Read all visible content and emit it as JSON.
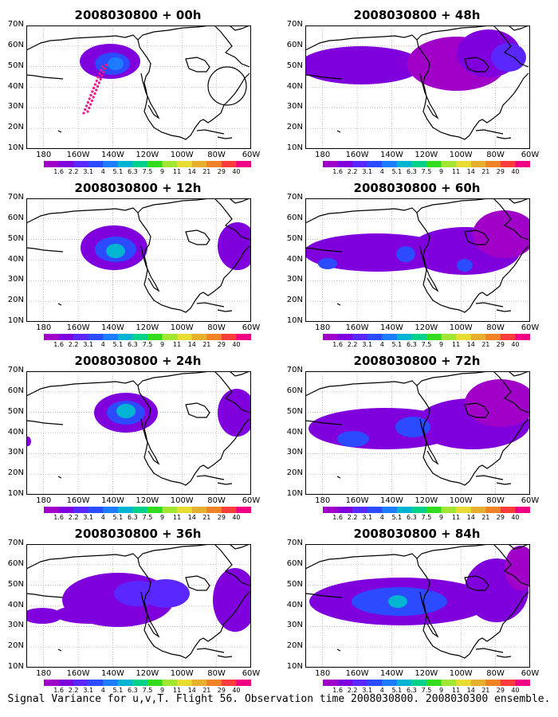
{
  "panels": [
    {
      "title": "2008030800 + 00h",
      "has_obs": true
    },
    {
      "title": "2008030800 + 48h"
    },
    {
      "title": "2008030800 + 12h"
    },
    {
      "title": "2008030800 + 60h"
    },
    {
      "title": "2008030800 + 24h"
    },
    {
      "title": "2008030800 + 72h"
    },
    {
      "title": "2008030800 + 36h"
    },
    {
      "title": "2008030800 + 84h"
    }
  ],
  "axes": {
    "y_labels": [
      "70N",
      "60N",
      "50N",
      "40N",
      "30N",
      "20N",
      "10N"
    ],
    "x_labels": [
      "180",
      "160W",
      "140W",
      "120W",
      "100W",
      "80W",
      "60W"
    ]
  },
  "colorbar": {
    "labels": [
      "1.6",
      "2.2",
      "3.1",
      "4",
      "5.1",
      "6.3",
      "7.5",
      "9",
      "11",
      "14",
      "21",
      "29",
      "40"
    ],
    "colors": [
      "#a000c8",
      "#7f00dc",
      "#5a28ff",
      "#2c4bff",
      "#1e7dff",
      "#00b4d2",
      "#00d28c",
      "#32dc1e",
      "#a0e632",
      "#e6dc32",
      "#e6af2d",
      "#f08228",
      "#fa3c3c",
      "#f00082"
    ]
  },
  "footer": "Signal Variance for u,v,T. Flight 56. Observation time 2008030800. 2008030300 ensemble."
}
